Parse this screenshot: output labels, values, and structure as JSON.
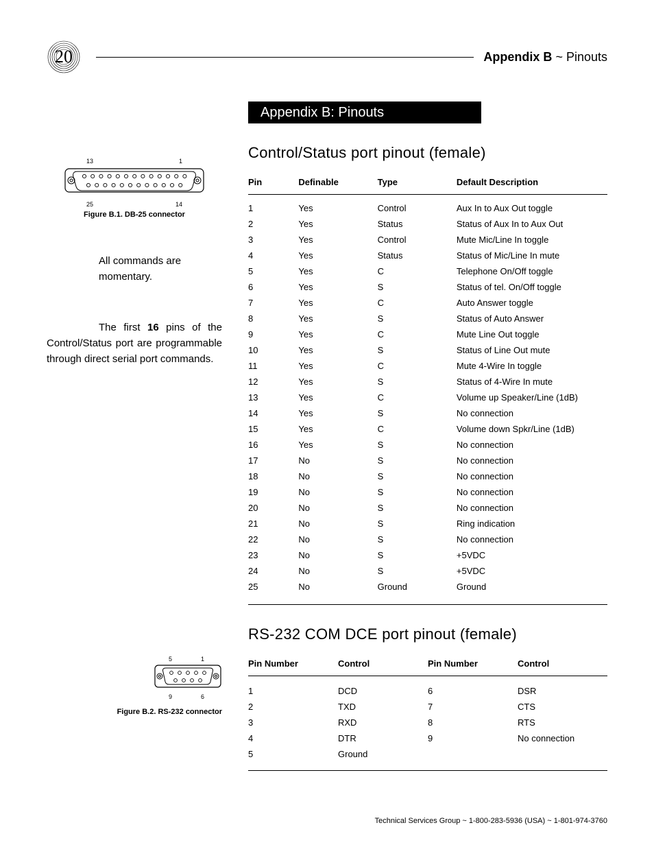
{
  "page_number": "20",
  "header": {
    "bold": "Appendix B",
    "sep": " ~ ",
    "rest": "Pinouts"
  },
  "banner": "Appendix B: Pinouts",
  "section1_title": "Control/Status port pinout (female)",
  "fig1": {
    "top_left": "13",
    "top_right": "1",
    "bottom_left": "25",
    "bottom_right": "14",
    "caption": "Figure B.1. DB-25 connector"
  },
  "note1": "All commands are momentary.",
  "note2_pre": "The first ",
  "note2_bold": "16",
  "note2_post": " pins of the Control/Status port are programmable through direct serial port commands.",
  "table1": {
    "columns": [
      "Pin",
      "Definable",
      "Type",
      "Default Description"
    ],
    "rows": [
      [
        "1",
        "Yes",
        "Control",
        "Aux In to Aux Out toggle"
      ],
      [
        "2",
        "Yes",
        "Status",
        "Status of Aux In to Aux Out"
      ],
      [
        "3",
        "Yes",
        "Control",
        "Mute Mic/Line In toggle"
      ],
      [
        "4",
        "Yes",
        "Status",
        "Status of Mic/Line In mute"
      ],
      [
        "5",
        "Yes",
        "C",
        "Telephone On/Off toggle"
      ],
      [
        "6",
        "Yes",
        "S",
        "Status of tel. On/Off toggle"
      ],
      [
        "7",
        "Yes",
        "C",
        "Auto Answer toggle"
      ],
      [
        "8",
        "Yes",
        "S",
        "Status of Auto Answer"
      ],
      [
        "9",
        "Yes",
        "C",
        "Mute Line Out toggle"
      ],
      [
        "10",
        "Yes",
        "S",
        "Status of Line Out mute"
      ],
      [
        "11",
        "Yes",
        "C",
        "Mute 4-Wire In toggle"
      ],
      [
        "12",
        "Yes",
        "S",
        "Status of 4-Wire In mute"
      ],
      [
        "13",
        "Yes",
        "C",
        "Volume up Speaker/Line (1dB)"
      ],
      [
        "14",
        "Yes",
        "S",
        "No connection"
      ],
      [
        "15",
        "Yes",
        "C",
        "Volume down Spkr/Line (1dB)"
      ],
      [
        "16",
        "Yes",
        "S",
        "No connection"
      ],
      [
        "17",
        "No",
        "S",
        "No connection"
      ],
      [
        "18",
        "No",
        "S",
        "No connection"
      ],
      [
        "19",
        "No",
        "S",
        "No connection"
      ],
      [
        "20",
        "No",
        "S",
        "No connection"
      ],
      [
        "21",
        "No",
        "S",
        "Ring indication"
      ],
      [
        "22",
        "No",
        "S",
        "No connection"
      ],
      [
        "23",
        "No",
        "S",
        "+5VDC"
      ],
      [
        "24",
        "No",
        "S",
        "+5VDC"
      ],
      [
        "25",
        "No",
        "Ground",
        "Ground"
      ]
    ],
    "col_widths": [
      "14%",
      "22%",
      "22%",
      "42%"
    ]
  },
  "section2_title": "RS-232 COM DCE port pinout (female)",
  "fig2": {
    "top_left": "5",
    "top_right": "1",
    "bottom_left": "9",
    "bottom_right": "6",
    "caption": "Figure B.2. RS-232 connector"
  },
  "table2": {
    "columns": [
      "Pin Number",
      "Control",
      "Pin Number",
      "Control"
    ],
    "rows": [
      [
        "1",
        "DCD",
        "6",
        "DSR"
      ],
      [
        "2",
        "TXD",
        "7",
        "CTS"
      ],
      [
        "3",
        "RXD",
        "8",
        "RTS"
      ],
      [
        "4",
        "DTR",
        "9",
        "No connection"
      ],
      [
        "5",
        "Ground",
        "",
        ""
      ]
    ],
    "col_widths": [
      "25%",
      "25%",
      "25%",
      "25%"
    ]
  },
  "footer": "Technical Services Group ~ 1-800-283-5936 (USA) ~ 1-801-974-3760",
  "colors": {
    "text": "#000000",
    "background": "#ffffff"
  }
}
